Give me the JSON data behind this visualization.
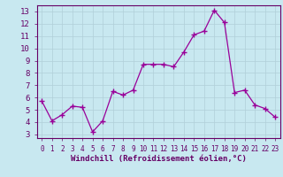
{
  "x": [
    0,
    1,
    2,
    3,
    4,
    5,
    6,
    7,
    8,
    9,
    10,
    11,
    12,
    13,
    14,
    15,
    16,
    17,
    18,
    19,
    20,
    21,
    22,
    23
  ],
  "y": [
    5.7,
    4.1,
    4.6,
    5.3,
    5.2,
    3.2,
    4.1,
    6.5,
    6.2,
    6.6,
    8.7,
    8.7,
    8.7,
    8.5,
    9.7,
    11.1,
    11.4,
    13.1,
    12.1,
    6.4,
    6.6,
    5.4,
    5.1,
    4.4
  ],
  "line_color": "#990099",
  "marker": "+",
  "marker_size": 4,
  "bg_color": "#c8e8f0",
  "grid_color": "#b0cfd8",
  "axis_bg": "#c8e8f0",
  "xlabel": "Windchill (Refroidissement éolien,°C)",
  "xlabel_color": "#660066",
  "tick_color": "#660066",
  "spine_color": "#660066",
  "ylabel_ticks": [
    3,
    4,
    5,
    6,
    7,
    8,
    9,
    10,
    11,
    12,
    13
  ],
  "xlabel_ticks": [
    0,
    1,
    2,
    3,
    4,
    5,
    6,
    7,
    8,
    9,
    10,
    11,
    12,
    13,
    14,
    15,
    16,
    17,
    18,
    19,
    20,
    21,
    22,
    23
  ],
  "ylim": [
    2.7,
    13.5
  ],
  "xlim": [
    -0.5,
    23.5
  ],
  "tick_labelsize": 6.5,
  "xlabel_fontsize": 6.5
}
